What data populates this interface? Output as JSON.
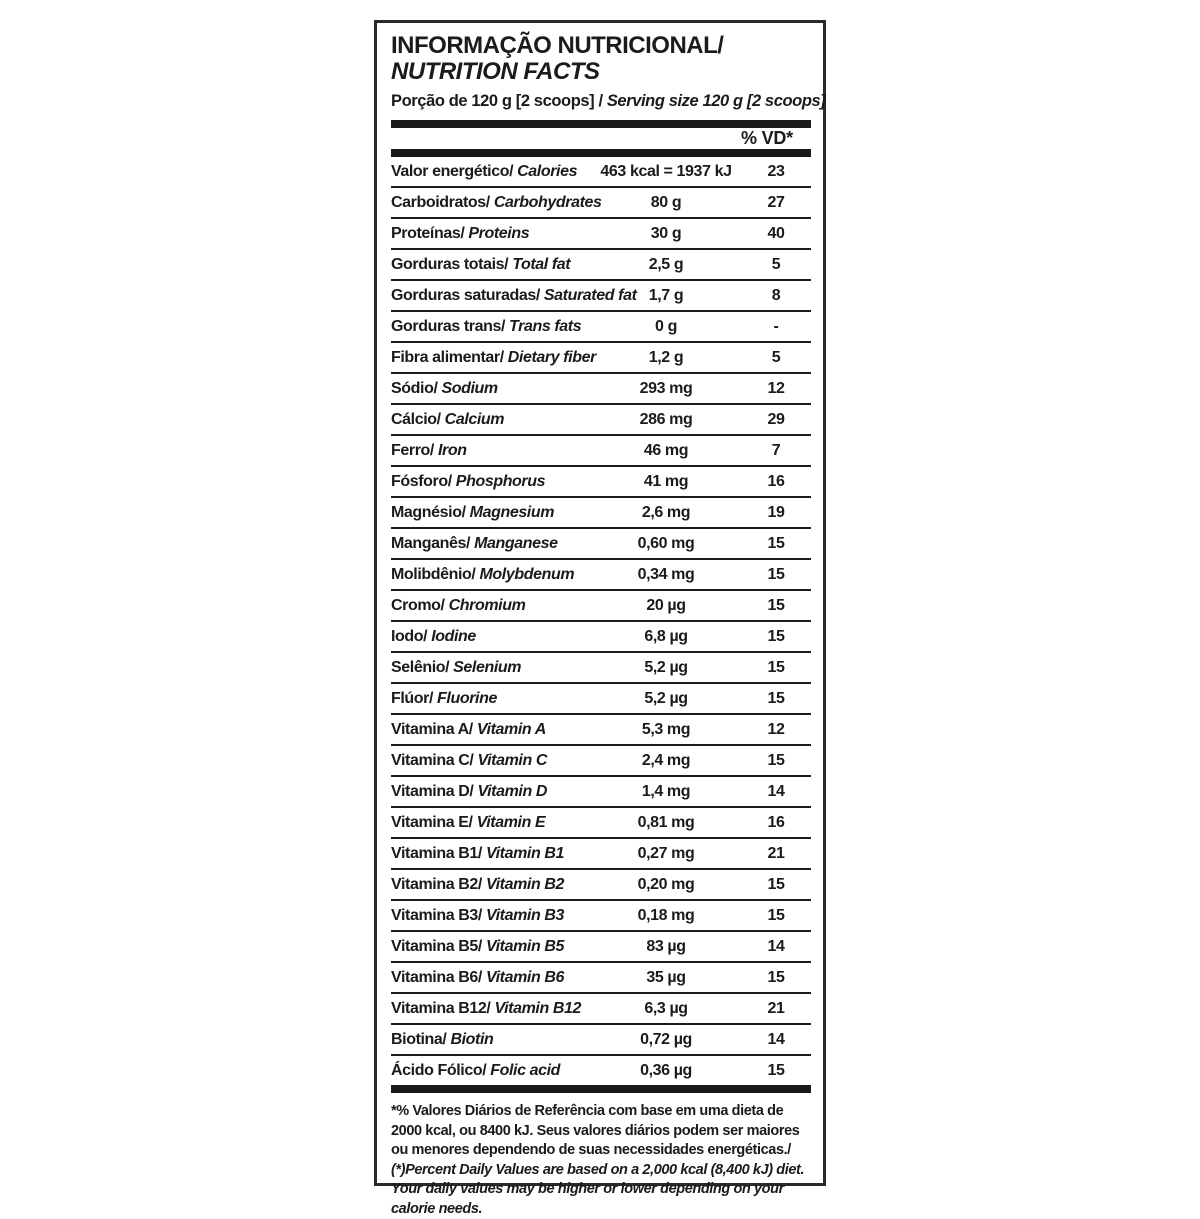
{
  "label": {
    "title_pt": "INFORMAÇÃO NUTRICIONAL/",
    "title_en": "NUTRITION FACTS",
    "serving_pt": "Porção de 120 g [2 scoops] / ",
    "serving_en": "Serving size 120 g [2 scoops]",
    "dv_header": "% VD*",
    "footnote_pt": "*% Valores Diários de Referência com base em uma dieta de 2000 kcal, ou 8400 kJ. Seus valores diários podem ser maiores ou menores dependendo de suas necessidades energéticas./ ",
    "footnote_en": "(*)Percent Daily Values are based on a 2,000 kcal (8,400 kJ) diet. Your daily values may be higher or lower depending on your calorie needs.",
    "colors": {
      "text": "#1b1b1b",
      "rule": "#1b1b1b",
      "background": "#ffffff"
    }
  },
  "table": {
    "rows": [
      {
        "name_pt": "Valor energético/",
        "name_en": "Calories",
        "value": "463 kcal = 1937 kJ",
        "dv": "23"
      },
      {
        "name_pt": "Carboidratos/",
        "name_en": "Carbohydrates",
        "value": "80 g",
        "dv": "27"
      },
      {
        "name_pt": "Proteínas/",
        "name_en": "Proteins",
        "value": "30 g",
        "dv": "40"
      },
      {
        "name_pt": "Gorduras totais/",
        "name_en": "Total fat",
        "value": "2,5 g",
        "dv": "5"
      },
      {
        "name_pt": "Gorduras saturadas/",
        "name_en": "Saturated fat",
        "value": "1,7 g",
        "dv": "8"
      },
      {
        "name_pt": "Gorduras trans/",
        "name_en": "Trans fats",
        "value": "0 g",
        "dv": "-"
      },
      {
        "name_pt": "Fibra alimentar/",
        "name_en": "Dietary fiber",
        "value": "1,2 g",
        "dv": "5"
      },
      {
        "name_pt": "Sódio/",
        "name_en": "Sodium",
        "value": "293 mg",
        "dv": "12"
      },
      {
        "name_pt": "Cálcio/",
        "name_en": "Calcium",
        "value": "286 mg",
        "dv": "29"
      },
      {
        "name_pt": "Ferro/",
        "name_en": "Iron",
        "value": "46 mg",
        "dv": "7"
      },
      {
        "name_pt": "Fósforo/",
        "name_en": "Phosphorus",
        "value": "41 mg",
        "dv": "16"
      },
      {
        "name_pt": "Magnésio/",
        "name_en": "Magnesium",
        "value": "2,6 mg",
        "dv": "19"
      },
      {
        "name_pt": "Manganês/",
        "name_en": "Manganese",
        "value": "0,60 mg",
        "dv": "15"
      },
      {
        "name_pt": "Molibdênio/",
        "name_en": "Molybdenum",
        "value": "0,34 mg",
        "dv": "15"
      },
      {
        "name_pt": "Cromo/",
        "name_en": "Chromium",
        "value": "20 µg",
        "dv": "15"
      },
      {
        "name_pt": "Iodo/",
        "name_en": "Iodine",
        "value": "6,8 µg",
        "dv": "15"
      },
      {
        "name_pt": "Selênio/",
        "name_en": "Selenium",
        "value": "5,2 µg",
        "dv": "15"
      },
      {
        "name_pt": "Flúor/",
        "name_en": "Fluorine",
        "value": "5,2 µg",
        "dv": "15"
      },
      {
        "name_pt": "Vitamina A/",
        "name_en": "Vitamin A",
        "value": "5,3 mg",
        "dv": "12"
      },
      {
        "name_pt": "Vitamina C/",
        "name_en": "Vitamin C",
        "value": "2,4 mg",
        "dv": "15"
      },
      {
        "name_pt": "Vitamina D/",
        "name_en": "Vitamin D",
        "value": "1,4 mg",
        "dv": "14"
      },
      {
        "name_pt": "Vitamina E/",
        "name_en": "Vitamin E",
        "value": "0,81 mg",
        "dv": "16"
      },
      {
        "name_pt": "Vitamina B1/",
        "name_en": "Vitamin B1",
        "value": "0,27 mg",
        "dv": "21"
      },
      {
        "name_pt": "Vitamina B2/",
        "name_en": "Vitamin B2",
        "value": "0,20 mg",
        "dv": "15"
      },
      {
        "name_pt": "Vitamina B3/",
        "name_en": "Vitamin B3",
        "value": "0,18 mg",
        "dv": "15"
      },
      {
        "name_pt": "Vitamina B5/",
        "name_en": "Vitamin B5",
        "value": "83 µg",
        "dv": "14"
      },
      {
        "name_pt": "Vitamina B6/",
        "name_en": "Vitamin B6",
        "value": "35 µg",
        "dv": "15"
      },
      {
        "name_pt": "Vitamina B12/",
        "name_en": "Vitamin B12",
        "value": "6,3 µg",
        "dv": "21"
      },
      {
        "name_pt": "Biotina/",
        "name_en": "Biotin",
        "value": "0,72 µg",
        "dv": "14"
      },
      {
        "name_pt": "Ácido Fólico/",
        "name_en": "Folic acid",
        "value": "0,36 µg",
        "dv": "15"
      }
    ]
  }
}
